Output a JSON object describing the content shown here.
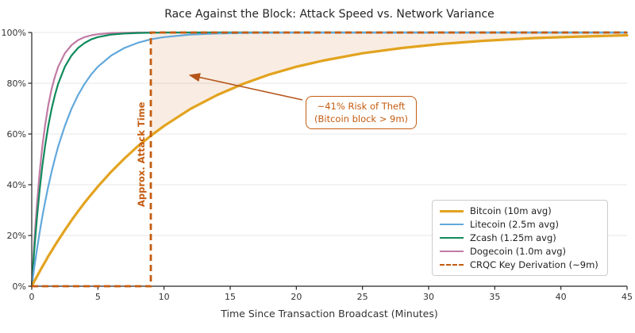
{
  "attack_time_label": "Approx. Attack Time",
  "annotation": {
    "line1": "~41% Risk of Theft",
    "line2": "(Bitcoin block > 9m)",
    "color": "#C45C10"
  },
  "chart_data": {
    "type": "line",
    "title": "Race Against the Block: Attack Speed vs. Network Variance",
    "xlabel": "Time Since Transaction Broadcast (Minutes)",
    "ylabel": "",
    "xlim": [
      0,
      45
    ],
    "ylim": [
      0,
      1
    ],
    "grid": "horizontal-only",
    "legend_position": "lower right",
    "x_ticks": [
      0,
      5,
      10,
      15,
      20,
      25,
      30,
      35,
      40,
      45
    ],
    "y_ticks": {
      "values": [
        0,
        0.2,
        0.4,
        0.6,
        0.8,
        1.0
      ],
      "labels": [
        "0%",
        "20%",
        "40%",
        "60%",
        "80%",
        "100%"
      ]
    },
    "x": [
      0,
      0.2,
      0.4,
      0.6,
      0.8,
      1,
      1.25,
      1.5,
      1.75,
      2,
      2.5,
      3,
      3.5,
      4,
      4.5,
      5,
      6,
      7,
      8,
      9,
      10,
      12,
      14,
      16,
      18,
      20,
      22,
      25,
      28,
      31,
      34,
      38,
      41,
      45
    ],
    "series": [
      {
        "name": "Bitcoin (10m avg)",
        "mean_minutes": 10,
        "color": "#E2A31F",
        "width": 3.2,
        "values": [
          0,
          0.02,
          0.039,
          0.058,
          0.077,
          0.095,
          0.118,
          0.139,
          0.161,
          0.181,
          0.221,
          0.259,
          0.295,
          0.33,
          0.362,
          0.393,
          0.451,
          0.503,
          0.551,
          0.593,
          0.632,
          0.699,
          0.753,
          0.798,
          0.835,
          0.865,
          0.889,
          0.918,
          0.939,
          0.955,
          0.967,
          0.978,
          0.983,
          0.989
        ]
      },
      {
        "name": "Litecoin (2.5m avg)",
        "mean_minutes": 2.5,
        "color": "#62A8DC",
        "width": 2.2,
        "values": [
          0,
          0.077,
          0.148,
          0.213,
          0.274,
          0.33,
          0.393,
          0.451,
          0.503,
          0.551,
          0.632,
          0.699,
          0.753,
          0.798,
          0.835,
          0.865,
          0.909,
          0.939,
          0.959,
          0.973,
          0.982,
          0.992,
          0.996,
          0.998,
          0.999,
          1,
          1,
          1,
          1,
          1,
          1,
          1,
          1,
          1
        ]
      },
      {
        "name": "Zcash (1.25m avg)",
        "mean_minutes": 1.25,
        "color": "#108A5C",
        "width": 2.2,
        "values": [
          0,
          0.148,
          0.274,
          0.381,
          0.473,
          0.551,
          0.632,
          0.699,
          0.753,
          0.798,
          0.865,
          0.909,
          0.939,
          0.959,
          0.973,
          0.982,
          0.992,
          0.996,
          0.998,
          0.999,
          1,
          1,
          1,
          1,
          1,
          1,
          1,
          1,
          1,
          1,
          1,
          1,
          1,
          1
        ]
      },
      {
        "name": "Dogecoin (1.0m avg)",
        "mean_minutes": 1.0,
        "color": "#C17BA5",
        "width": 2.2,
        "values": [
          0,
          0.181,
          0.33,
          0.451,
          0.551,
          0.632,
          0.713,
          0.777,
          0.826,
          0.865,
          0.918,
          0.95,
          0.97,
          0.982,
          0.989,
          0.993,
          0.998,
          0.999,
          1,
          1,
          1,
          1,
          1,
          1,
          1,
          1,
          1,
          1,
          1,
          1,
          1,
          1,
          1,
          1
        ]
      }
    ],
    "crqc_line": {
      "name": "CRQC Key Derivation (~9m)",
      "color": "#C45C10",
      "width": 2.8,
      "dash": "8 5",
      "step_points": [
        [
          0,
          0
        ],
        [
          9,
          0
        ],
        [
          9,
          1
        ],
        [
          45,
          1
        ]
      ]
    },
    "shaded_region": {
      "from_x": 9,
      "between": "Bitcoin curve and 100% line",
      "fill": "rgba(212,118,40,0.13)"
    },
    "colors": {
      "gridline": "#e7e7e7",
      "spine": "#262626",
      "tick_label": "#333333",
      "arrow": "#B5551A"
    }
  }
}
